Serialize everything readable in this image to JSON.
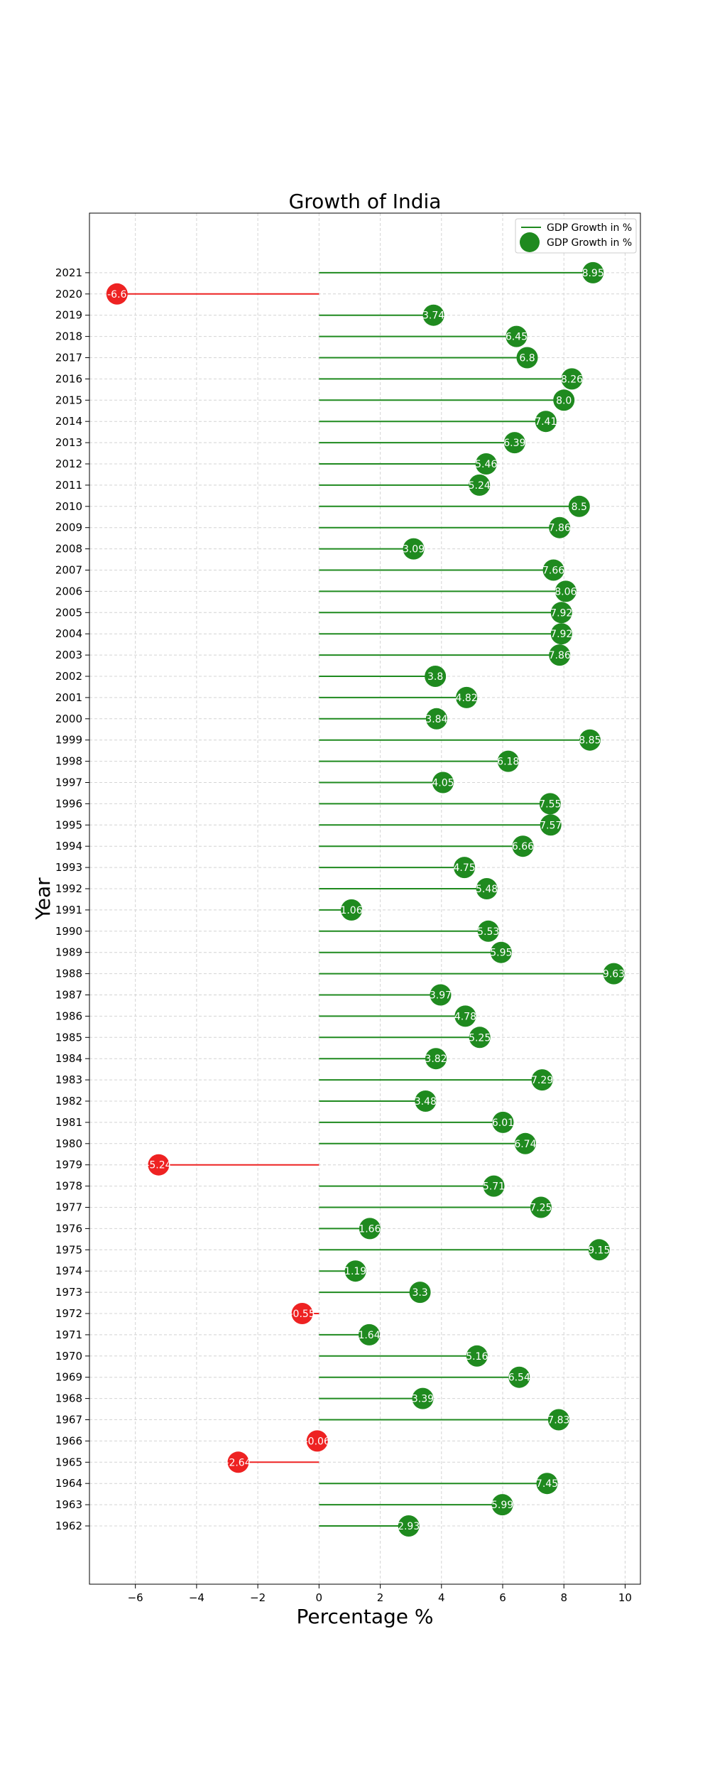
{
  "chart_data": {
    "type": "lollipop",
    "title": "Growth of India",
    "xlabel": "Percentage %",
    "ylabel": "Year",
    "xlim": [
      -7.5,
      10.5
    ],
    "xticks": [
      -6,
      -4,
      -2,
      0,
      2,
      4,
      6,
      8,
      10
    ],
    "xtick_labels": [
      "−6",
      "−4",
      "−2",
      "0",
      "2",
      "4",
      "6",
      "8",
      "10"
    ],
    "grid": true,
    "legend_position": "top-right",
    "legend": [
      {
        "label": "GDP Growth in %",
        "kind": "line"
      },
      {
        "label": "GDP Growth in %",
        "kind": "marker"
      }
    ],
    "colors": {
      "positive": "#1f8a1f",
      "negative": "#ee2222"
    },
    "categories": [
      "1962",
      "1963",
      "1964",
      "1965",
      "1966",
      "1967",
      "1968",
      "1969",
      "1970",
      "1971",
      "1972",
      "1973",
      "1974",
      "1975",
      "1976",
      "1977",
      "1978",
      "1979",
      "1980",
      "1981",
      "1982",
      "1983",
      "1984",
      "1985",
      "1986",
      "1987",
      "1988",
      "1989",
      "1990",
      "1991",
      "1992",
      "1993",
      "1994",
      "1995",
      "1996",
      "1997",
      "1998",
      "1999",
      "2000",
      "2001",
      "2002",
      "2003",
      "2004",
      "2005",
      "2006",
      "2007",
      "2008",
      "2009",
      "2010",
      "2011",
      "2012",
      "2013",
      "2014",
      "2015",
      "2016",
      "2017",
      "2018",
      "2019",
      "2020",
      "2021"
    ],
    "values": [
      2.93,
      5.99,
      7.45,
      -2.64,
      -0.06,
      7.83,
      3.39,
      6.54,
      5.16,
      1.64,
      -0.55,
      3.3,
      1.19,
      9.15,
      1.66,
      7.25,
      5.71,
      -5.24,
      6.74,
      6.01,
      3.48,
      7.29,
      3.82,
      5.25,
      4.78,
      3.97,
      9.63,
      5.95,
      5.53,
      1.06,
      5.48,
      4.75,
      6.66,
      7.57,
      7.55,
      4.05,
      6.18,
      8.85,
      3.84,
      4.82,
      3.8,
      7.86,
      7.92,
      7.92,
      8.06,
      7.66,
      3.09,
      7.86,
      8.5,
      5.24,
      5.46,
      6.39,
      7.41,
      8.0,
      8.26,
      6.8,
      6.45,
      3.74,
      -6.6,
      8.95
    ],
    "value_labels": [
      "2.93",
      "5.99",
      "7.45",
      "-2.64",
      "-0.06",
      "7.83",
      "3.39",
      "6.54",
      "5.16",
      "1.64",
      "-0.55",
      "3.3",
      "1.19",
      "9.15",
      "1.66",
      "7.25",
      "5.71",
      "-5.24",
      "6.74",
      "6.01",
      "3.48",
      "7.29",
      "3.82",
      "5.25",
      "4.78",
      "3.97",
      "9.63",
      "5.95",
      "5.53",
      "1.06",
      "5.48",
      "4.75",
      "6.66",
      "7.57",
      "7.55",
      "4.05",
      "6.18",
      "8.85",
      "3.84",
      "4.82",
      "3.8",
      "7.86",
      "7.92",
      "7.92",
      "8.06",
      "7.66",
      "3.09",
      "7.86",
      "8.5",
      "5.24",
      "5.46",
      "6.39",
      "7.41",
      "8.0",
      "8.26",
      "6.8",
      "6.45",
      "3.74",
      "-6.6",
      "8.95"
    ]
  }
}
